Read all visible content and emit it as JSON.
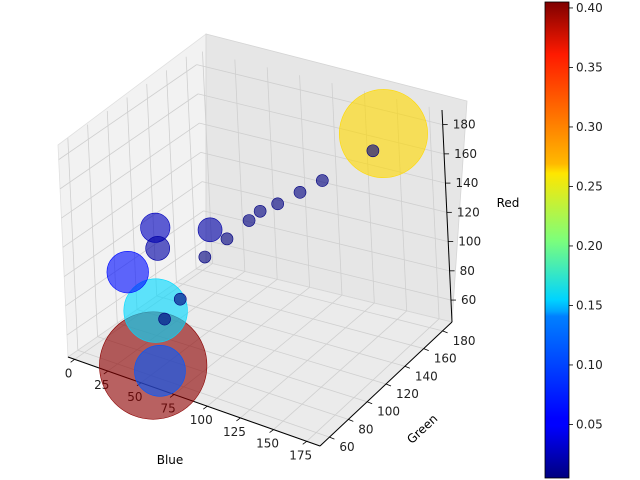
{
  "chart_data": {
    "type": "scatter",
    "projection": "3d",
    "title": "",
    "xlabel": "Blue",
    "ylabel": "Green",
    "zlabel": "Red",
    "xlim": [
      -5,
      185
    ],
    "ylim": [
      50,
      190
    ],
    "zlim": [
      45,
      190
    ],
    "grid": true,
    "colormap": "jet",
    "colorbar": {
      "range": [
        0.005,
        0.405
      ],
      "ticks": [
        "0.05",
        "0.10",
        "0.15",
        "0.20",
        "0.25",
        "0.30",
        "0.35",
        "0.40"
      ],
      "tick_values": [
        0.05,
        0.1,
        0.15,
        0.2,
        0.25,
        0.3,
        0.35,
        0.4
      ],
      "location": "right"
    },
    "axes": {
      "x_ticks": [
        "0",
        "25",
        "50",
        "75",
        "100",
        "125",
        "150",
        "175"
      ],
      "x_tick_values": [
        0,
        25,
        50,
        75,
        100,
        125,
        150,
        175
      ],
      "y_ticks": [
        "60",
        "80",
        "100",
        "120",
        "140",
        "160",
        "180"
      ],
      "y_tick_values": [
        60,
        80,
        100,
        120,
        140,
        160,
        180
      ],
      "z_ticks": [
        "60",
        "80",
        "100",
        "120",
        "140",
        "160",
        "180"
      ],
      "z_tick_values": [
        60,
        80,
        100,
        120,
        140,
        160,
        180
      ]
    },
    "points": [
      {
        "blue": 60,
        "green": 50,
        "red": 60,
        "weight": 0.4
      },
      {
        "blue": 65,
        "green": 50,
        "red": 58,
        "weight": 0.09
      },
      {
        "blue": 60,
        "green": 55,
        "red": 95,
        "weight": 0.14
      },
      {
        "blue": 40,
        "green": 55,
        "red": 115,
        "weight": 0.06
      },
      {
        "blue": 55,
        "green": 65,
        "red": 145,
        "weight": 0.03
      },
      {
        "blue": 60,
        "green": 60,
        "red": 135,
        "weight": 0.02
      },
      {
        "blue": 70,
        "green": 100,
        "red": 130,
        "weight": 0.02
      },
      {
        "blue": 150,
        "green": 175,
        "red": 175,
        "weight": 0.27
      },
      {
        "blue": 145,
        "green": 170,
        "red": 165,
        "weight": 0.005
      },
      {
        "blue": 120,
        "green": 150,
        "red": 150,
        "weight": 0.005
      },
      {
        "blue": 100,
        "green": 130,
        "red": 140,
        "weight": 0.005
      },
      {
        "blue": 85,
        "green": 120,
        "red": 130,
        "weight": 0.005
      },
      {
        "blue": 75,
        "green": 110,
        "red": 120,
        "weight": 0.005
      },
      {
        "blue": 65,
        "green": 100,
        "red": 110,
        "weight": 0.005
      },
      {
        "blue": 60,
        "green": 80,
        "red": 90,
        "weight": 0.005
      },
      {
        "blue": 55,
        "green": 70,
        "red": 80,
        "weight": 0.005
      },
      {
        "blue": 110,
        "green": 140,
        "red": 145,
        "weight": 0.005
      },
      {
        "blue": 90,
        "green": 125,
        "red": 135,
        "weight": 0.005
      }
    ]
  }
}
